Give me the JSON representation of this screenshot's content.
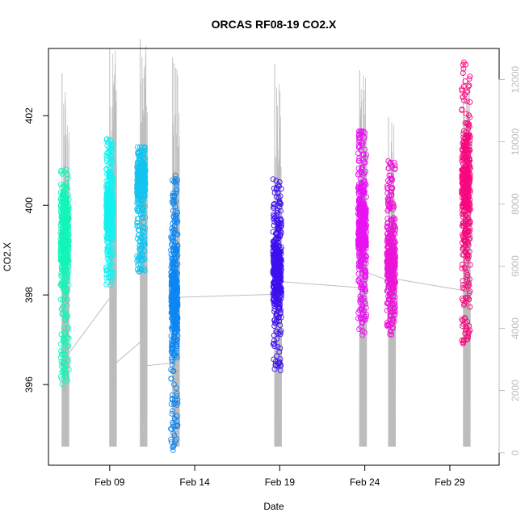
{
  "chart_data": {
    "type": "scatter",
    "title": "ORCAS RF08-19 CO2.X",
    "xlabel": "Date",
    "ylabel": "CO2.X",
    "x_tick_labels": [
      "Feb 09",
      "Feb 14",
      "Feb 19",
      "Feb 24",
      "Feb 29"
    ],
    "x_tick_days": [
      9,
      14,
      19,
      24,
      29
    ],
    "xlim_days": [
      5.4,
      31.9
    ],
    "y_left": {
      "ylim": [
        394.2,
        403.5
      ],
      "ticks": [
        396,
        398,
        400,
        402
      ]
    },
    "y_right": {
      "ylim": [
        -400,
        13000
      ],
      "ticks": [
        0,
        2000,
        4000,
        6000,
        8000,
        10000,
        12000
      ],
      "color": "#bdbdbd"
    },
    "grid": false,
    "altitude_trace": {
      "color": "#bdbdbd",
      "points": [
        [
          6.5,
          2800
        ],
        [
          6.6,
          3200
        ],
        [
          9.3,
          5200
        ],
        [
          9.4,
          2900
        ],
        [
          11.1,
          3700
        ],
        [
          11.2,
          2800
        ],
        [
          12.9,
          2900
        ],
        [
          13.0,
          5000
        ],
        [
          18.95,
          5100
        ],
        [
          19.1,
          5500
        ],
        [
          23.95,
          5300
        ],
        [
          24.1,
          5800
        ],
        [
          25.6,
          5500
        ],
        [
          25.7,
          5600
        ],
        [
          30.0,
          5200
        ],
        [
          30.1,
          5700
        ]
      ],
      "flights": [
        {
          "x0": 6.2,
          "x1": 6.6,
          "climb": 12200,
          "low": 200,
          "left_end": 2800,
          "right_end": 3200
        },
        {
          "x0": 9.0,
          "x1": 9.4,
          "climb": 13000,
          "low": 200,
          "left_end": 5200,
          "right_end": 2900
        },
        {
          "x0": 10.8,
          "x1": 11.2,
          "climb": 13300,
          "low": 200,
          "left_end": 3700,
          "right_end": 2800
        },
        {
          "x0": 12.7,
          "x1": 13.1,
          "climb": 12700,
          "low": 200,
          "left_end": 2900,
          "right_end": 5000
        },
        {
          "x0": 18.7,
          "x1": 19.1,
          "climb": 12500,
          "low": 200,
          "left_end": 5100,
          "right_end": 5500
        },
        {
          "x0": 23.7,
          "x1": 24.1,
          "climb": 12300,
          "low": 200,
          "left_end": 5300,
          "right_end": 5800
        },
        {
          "x0": 25.4,
          "x1": 25.8,
          "climb": 10800,
          "low": 200,
          "left_end": 5500,
          "right_end": 5600
        },
        {
          "x0": 29.8,
          "x1": 30.2,
          "climb": 12600,
          "low": 200,
          "left_end": 5200,
          "right_end": 5700
        }
      ]
    },
    "series": [
      {
        "color": "#12f5b8",
        "x_range": [
          6.1,
          6.6
        ],
        "y_range": [
          396.0,
          400.8
        ],
        "density_center": 399.3
      },
      {
        "color": "#14f0f0",
        "x_range": [
          8.8,
          9.2
        ],
        "y_range": [
          398.2,
          401.5
        ],
        "density_center": 399.8
      },
      {
        "color": "#13c4ef",
        "x_range": [
          10.6,
          11.1
        ],
        "y_range": [
          398.5,
          401.3
        ],
        "density_center": 400.6
      },
      {
        "color": "#0d86f2",
        "x_range": [
          12.6,
          13.0
        ],
        "y_range": [
          394.5,
          400.7
        ],
        "density_center": 398.0
      },
      {
        "color": "#3d0ff0",
        "x_range": [
          18.6,
          19.1
        ],
        "y_range": [
          396.3,
          400.6
        ],
        "density_center": 398.6
      },
      {
        "color": "#e812f2",
        "x_range": [
          23.6,
          24.1
        ],
        "y_range": [
          397.1,
          401.7
        ],
        "density_center": 399.5
      },
      {
        "color": "#ea15d6",
        "x_range": [
          25.3,
          25.8
        ],
        "y_range": [
          397.1,
          401.0
        ],
        "density_center": 398.7
      },
      {
        "color": "#f7087e",
        "x_range": [
          29.7,
          30.2
        ],
        "y_range": [
          396.9,
          403.2
        ],
        "density_center": 400.4
      }
    ]
  }
}
